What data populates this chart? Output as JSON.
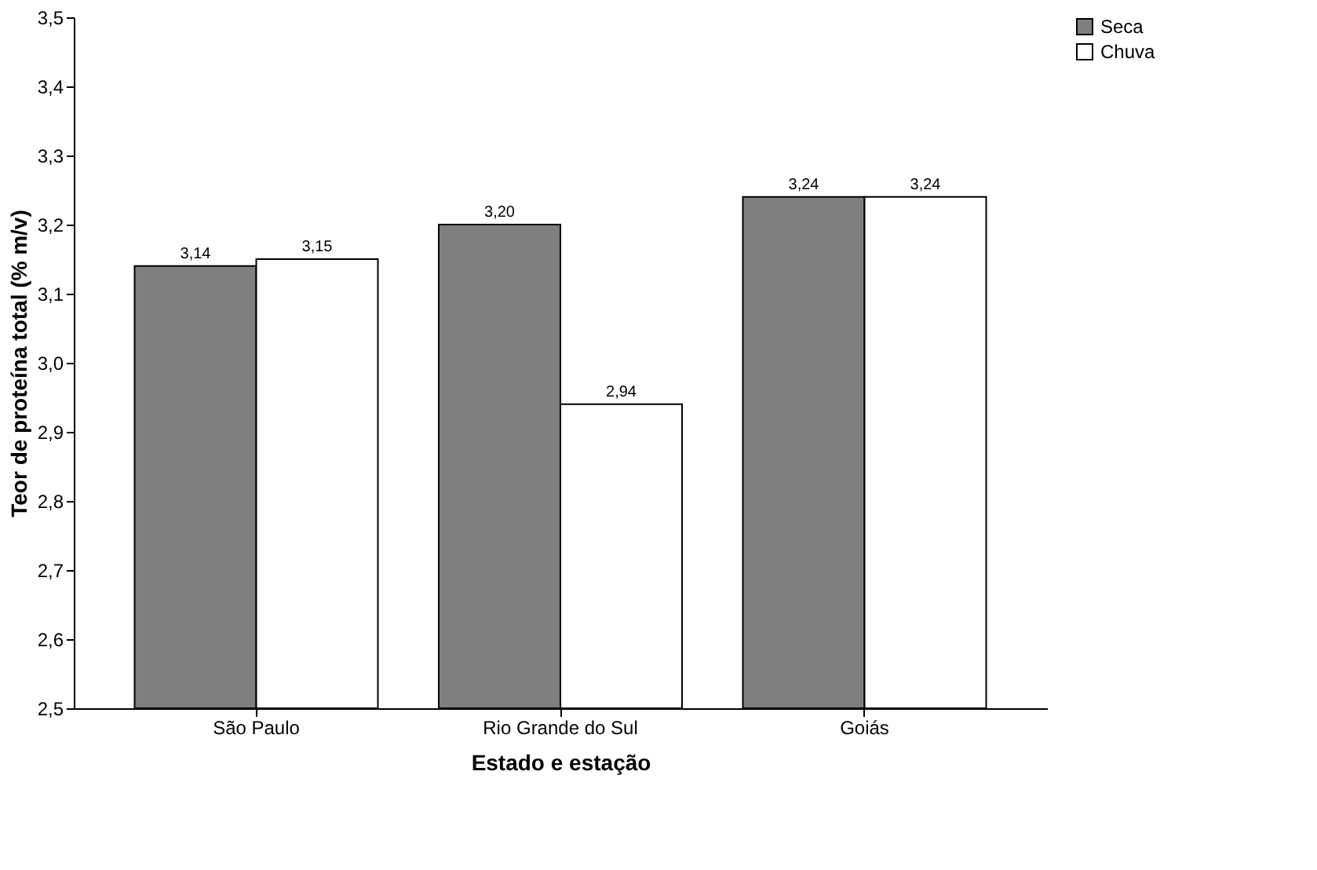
{
  "chart_data": {
    "type": "bar",
    "xlabel": "Estado e estação",
    "ylabel": "Teor de proteína total (% m/v)",
    "categories": [
      "São Paulo",
      "Rio Grande do Sul",
      "Goiás"
    ],
    "series": [
      {
        "name": "Seca",
        "color": "#7f7f7f",
        "values": [
          3.14,
          3.2,
          3.24
        ],
        "value_labels": [
          "3,14",
          "3,20",
          "3,24"
        ]
      },
      {
        "name": "Chuva",
        "color": "#ffffff",
        "values": [
          3.15,
          2.94,
          3.24
        ],
        "value_labels": [
          "3,15",
          "2,94",
          "3,24"
        ]
      }
    ],
    "ylim": [
      2.5,
      3.5
    ],
    "yticks": [
      {
        "value": 2.5,
        "label": "2,5"
      },
      {
        "value": 2.6,
        "label": "2,6"
      },
      {
        "value": 2.7,
        "label": "2,7"
      },
      {
        "value": 2.8,
        "label": "2,8"
      },
      {
        "value": 2.9,
        "label": "2,9"
      },
      {
        "value": 3.0,
        "label": "3,0"
      },
      {
        "value": 3.1,
        "label": "3,1"
      },
      {
        "value": 3.2,
        "label": "3,2"
      },
      {
        "value": 3.3,
        "label": "3,3"
      },
      {
        "value": 3.4,
        "label": "3,4"
      },
      {
        "value": 3.5,
        "label": "3,5"
      }
    ],
    "grid": false,
    "legend": "right"
  }
}
